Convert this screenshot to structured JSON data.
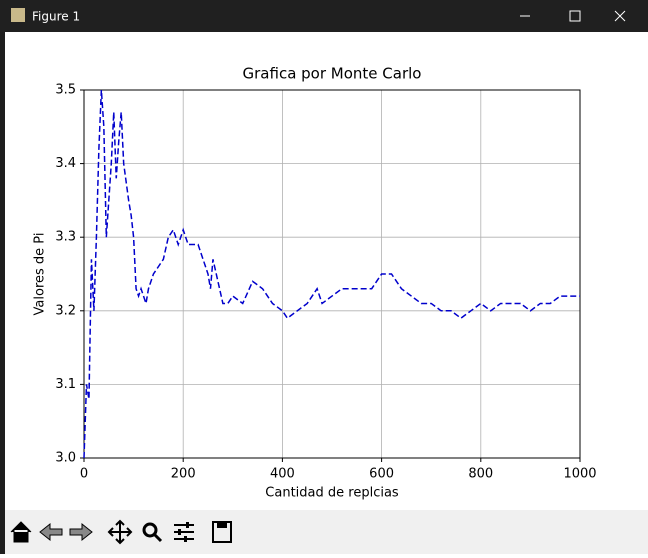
{
  "window": {
    "title": "Figure 1"
  },
  "chart_data": {
    "type": "line",
    "title": "Grafica por Monte Carlo",
    "xlabel": "Cantidad de replcias",
    "ylabel": "Valores de Pi",
    "x": [
      0,
      5,
      10,
      15,
      20,
      25,
      30,
      35,
      40,
      45,
      50,
      55,
      60,
      65,
      70,
      75,
      80,
      90,
      95,
      100,
      105,
      110,
      115,
      125,
      130,
      140,
      150,
      160,
      170,
      180,
      190,
      200,
      210,
      230,
      250,
      255,
      260,
      270,
      280,
      290,
      300,
      320,
      340,
      360,
      380,
      400,
      410,
      430,
      450,
      470,
      480,
      500,
      520,
      540,
      560,
      580,
      600,
      620,
      640,
      660,
      680,
      700,
      720,
      740,
      760,
      780,
      800,
      820,
      840,
      860,
      880,
      900,
      920,
      940,
      960,
      980,
      1000
    ],
    "series": [
      {
        "color": "#0000cc",
        "values": [
          3.0,
          3.1,
          3.08,
          3.27,
          3.2,
          3.3,
          3.42,
          3.5,
          3.45,
          3.3,
          3.35,
          3.4,
          3.47,
          3.38,
          3.43,
          3.47,
          3.4,
          3.35,
          3.33,
          3.3,
          3.23,
          3.22,
          3.23,
          3.21,
          3.23,
          3.25,
          3.26,
          3.27,
          3.3,
          3.31,
          3.29,
          3.31,
          3.29,
          3.29,
          3.25,
          3.23,
          3.27,
          3.24,
          3.21,
          3.21,
          3.22,
          3.21,
          3.24,
          3.23,
          3.21,
          3.2,
          3.19,
          3.2,
          3.21,
          3.23,
          3.21,
          3.22,
          3.23,
          3.23,
          3.23,
          3.23,
          3.25,
          3.25,
          3.23,
          3.22,
          3.21,
          3.21,
          3.2,
          3.2,
          3.19,
          3.2,
          3.21,
          3.2,
          3.21,
          3.21,
          3.21,
          3.2,
          3.21,
          3.21,
          3.22,
          3.22,
          3.22
        ]
      }
    ],
    "xlim": [
      0,
      1000
    ],
    "xticks": [
      0,
      200,
      400,
      600,
      800,
      1000
    ],
    "ylim": [
      3.0,
      3.5
    ],
    "yticks": [
      {
        "value": 3,
        "label": "3.0"
      },
      3.1,
      3.2,
      3.3,
      3.4,
      3.5
    ],
    "grid": true,
    "linestyle": "dashed"
  }
}
